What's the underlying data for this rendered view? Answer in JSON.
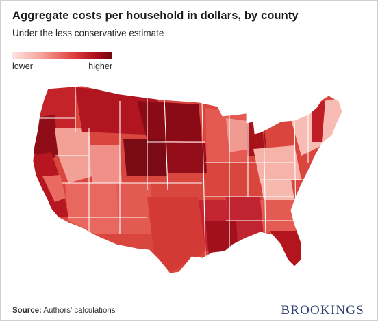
{
  "header": {
    "title": "Aggregate costs per household in dollars, by county",
    "subtitle": "Under the less conservative estimate"
  },
  "legend": {
    "low_label": "lower",
    "high_label": "higher",
    "colors": [
      "#fde3e0",
      "#f6a59d",
      "#e0453f",
      "#b3101d",
      "#6e0711"
    ]
  },
  "footer": {
    "source_label": "Source:",
    "source_text": " Authors' calculations",
    "brand": "BROOKINGS"
  }
}
